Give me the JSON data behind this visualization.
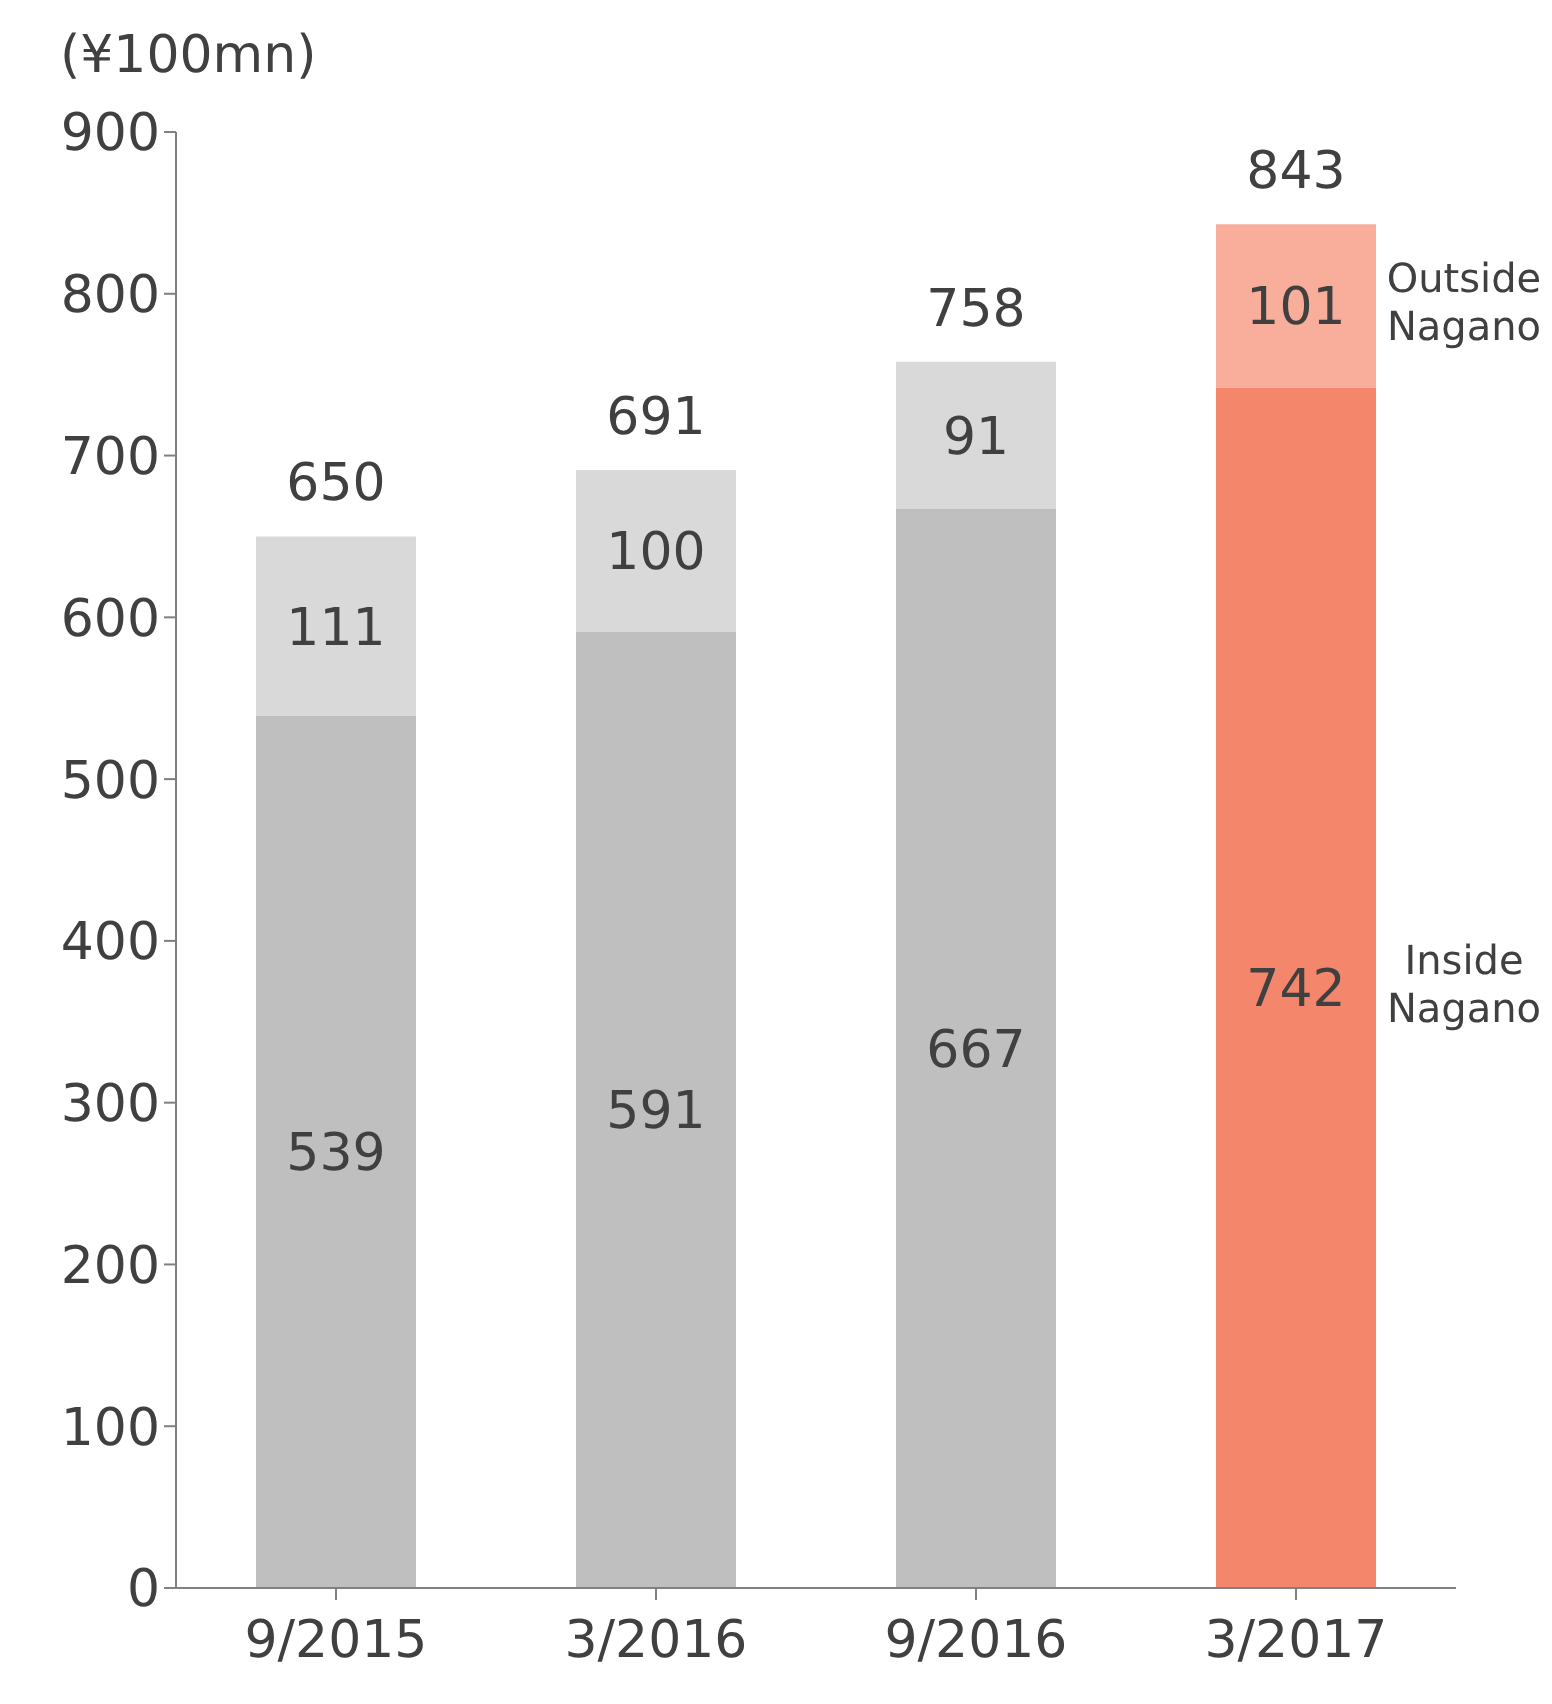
{
  "chart_data": {
    "type": "bar",
    "stacked": true,
    "ylabel": "(¥100mn)",
    "categories": [
      "9/2015",
      "3/2016",
      "9/2016",
      "3/2017"
    ],
    "series": [
      {
        "name": "Inside Nagano",
        "colors": [
          "#bfbfbf",
          "#bfbfbf",
          "#bfbfbf",
          "#f4866b"
        ],
        "values": [
          539,
          591,
          667,
          742
        ]
      },
      {
        "name": "Outside Nagano",
        "colors": [
          "#d9d9d9",
          "#d9d9d9",
          "#d9d9d9",
          "#f8ae9a"
        ],
        "values": [
          111,
          100,
          91,
          101
        ]
      }
    ],
    "ylim": [
      0,
      900
    ],
    "yticks": [
      0,
      100,
      200,
      300,
      400,
      500,
      600,
      700,
      800,
      900
    ],
    "grid": false,
    "legend": false,
    "data_labels": true,
    "totals": [
      "650",
      "691",
      "758",
      "843"
    ]
  }
}
